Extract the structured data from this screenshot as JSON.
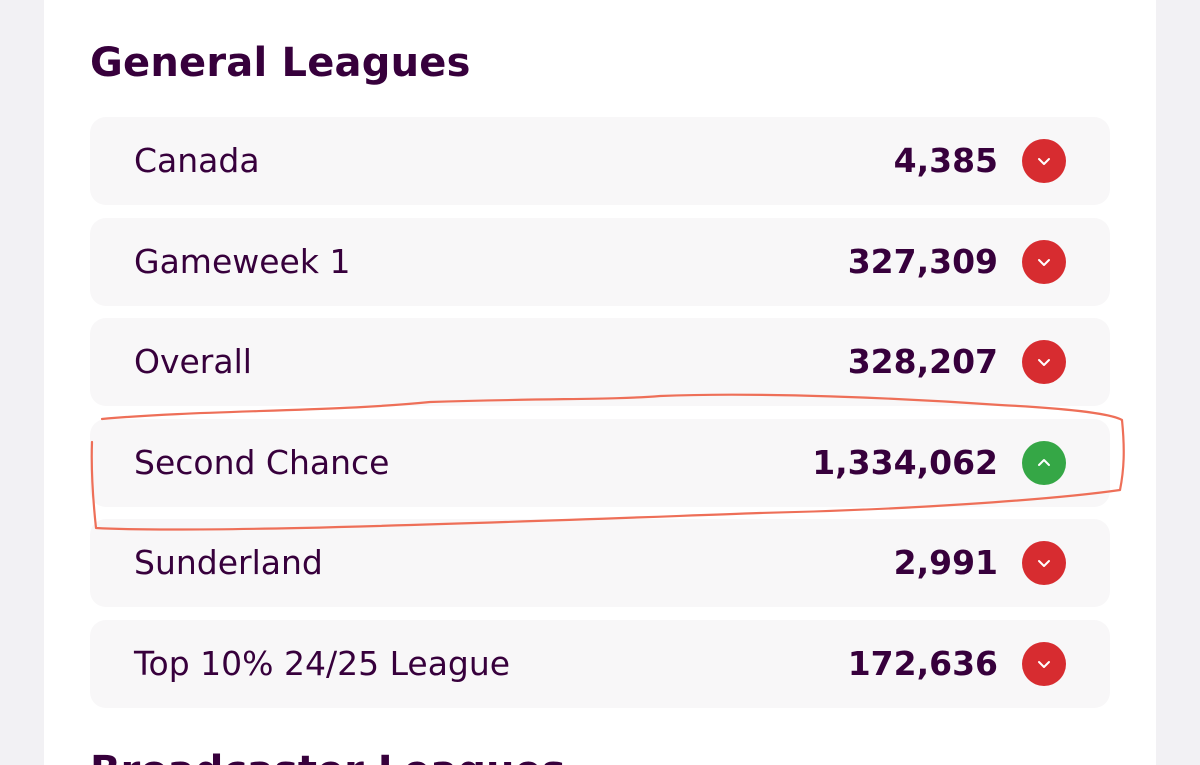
{
  "section": {
    "title": "General Leagues",
    "next_title": "Broadcaster Leagues"
  },
  "leagues": [
    {
      "name": "Canada",
      "rank": "4,385",
      "movement": "down",
      "icon": "chevron-down-icon"
    },
    {
      "name": "Gameweek 1",
      "rank": "327,309",
      "movement": "down",
      "icon": "chevron-down-icon"
    },
    {
      "name": "Overall",
      "rank": "328,207",
      "movement": "down",
      "icon": "chevron-down-icon"
    },
    {
      "name": "Second Chance",
      "rank": "1,334,062",
      "movement": "up",
      "icon": "chevron-up-icon"
    },
    {
      "name": "Sunderland",
      "rank": "2,991",
      "movement": "down",
      "icon": "chevron-down-icon"
    },
    {
      "name": "Top 10% 24/25 League",
      "rank": "172,636",
      "movement": "down",
      "icon": "chevron-down-icon"
    }
  ],
  "colors": {
    "text": "#37003c",
    "rank_down": "#d72c30",
    "rank_up": "#35a746",
    "annotation": "#ee6f58"
  }
}
